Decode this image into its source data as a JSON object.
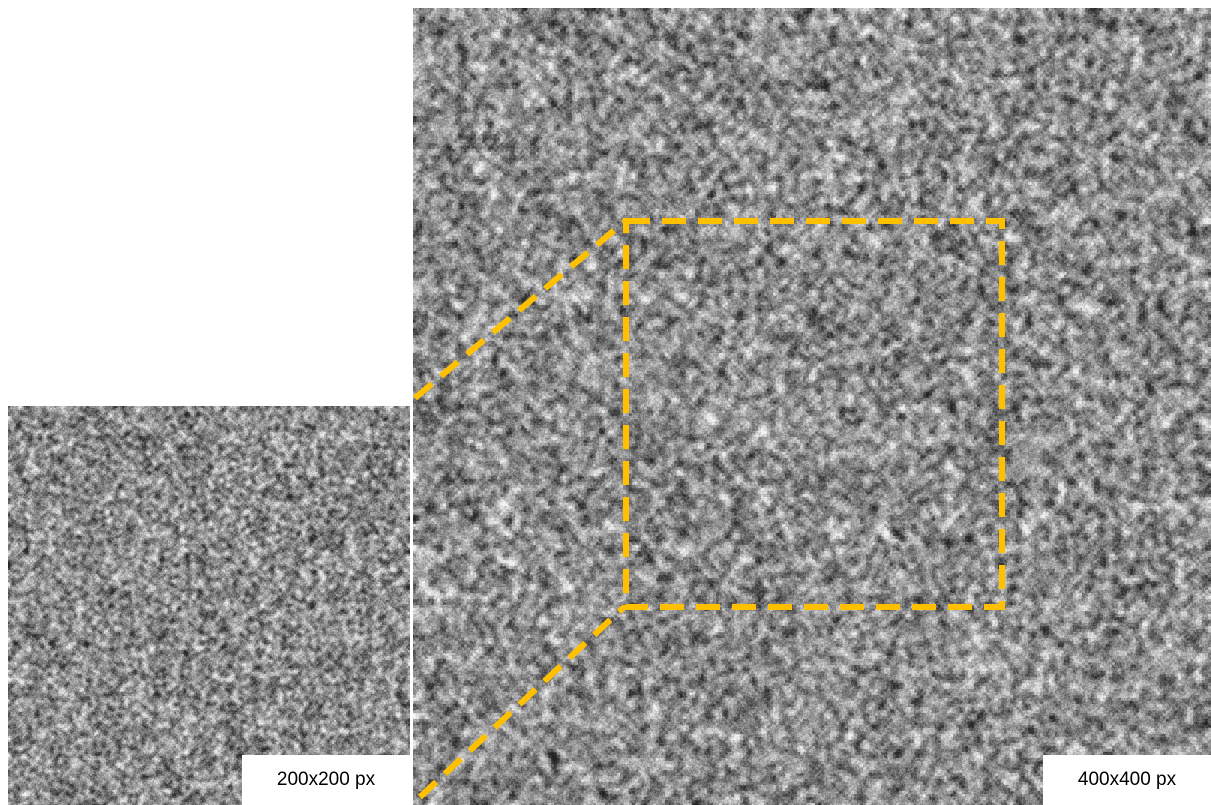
{
  "panels": {
    "small": {
      "label": "200x200 px"
    },
    "large": {
      "label": "400x400 px"
    }
  },
  "colors": {
    "highlight_outline": "#FFC000",
    "background": "#FFFFFF",
    "noise_mid": "#8A8A8A"
  },
  "icons": {
    "zoom_region": "dashed-rectangle-outline",
    "connector": "dashed-line"
  }
}
